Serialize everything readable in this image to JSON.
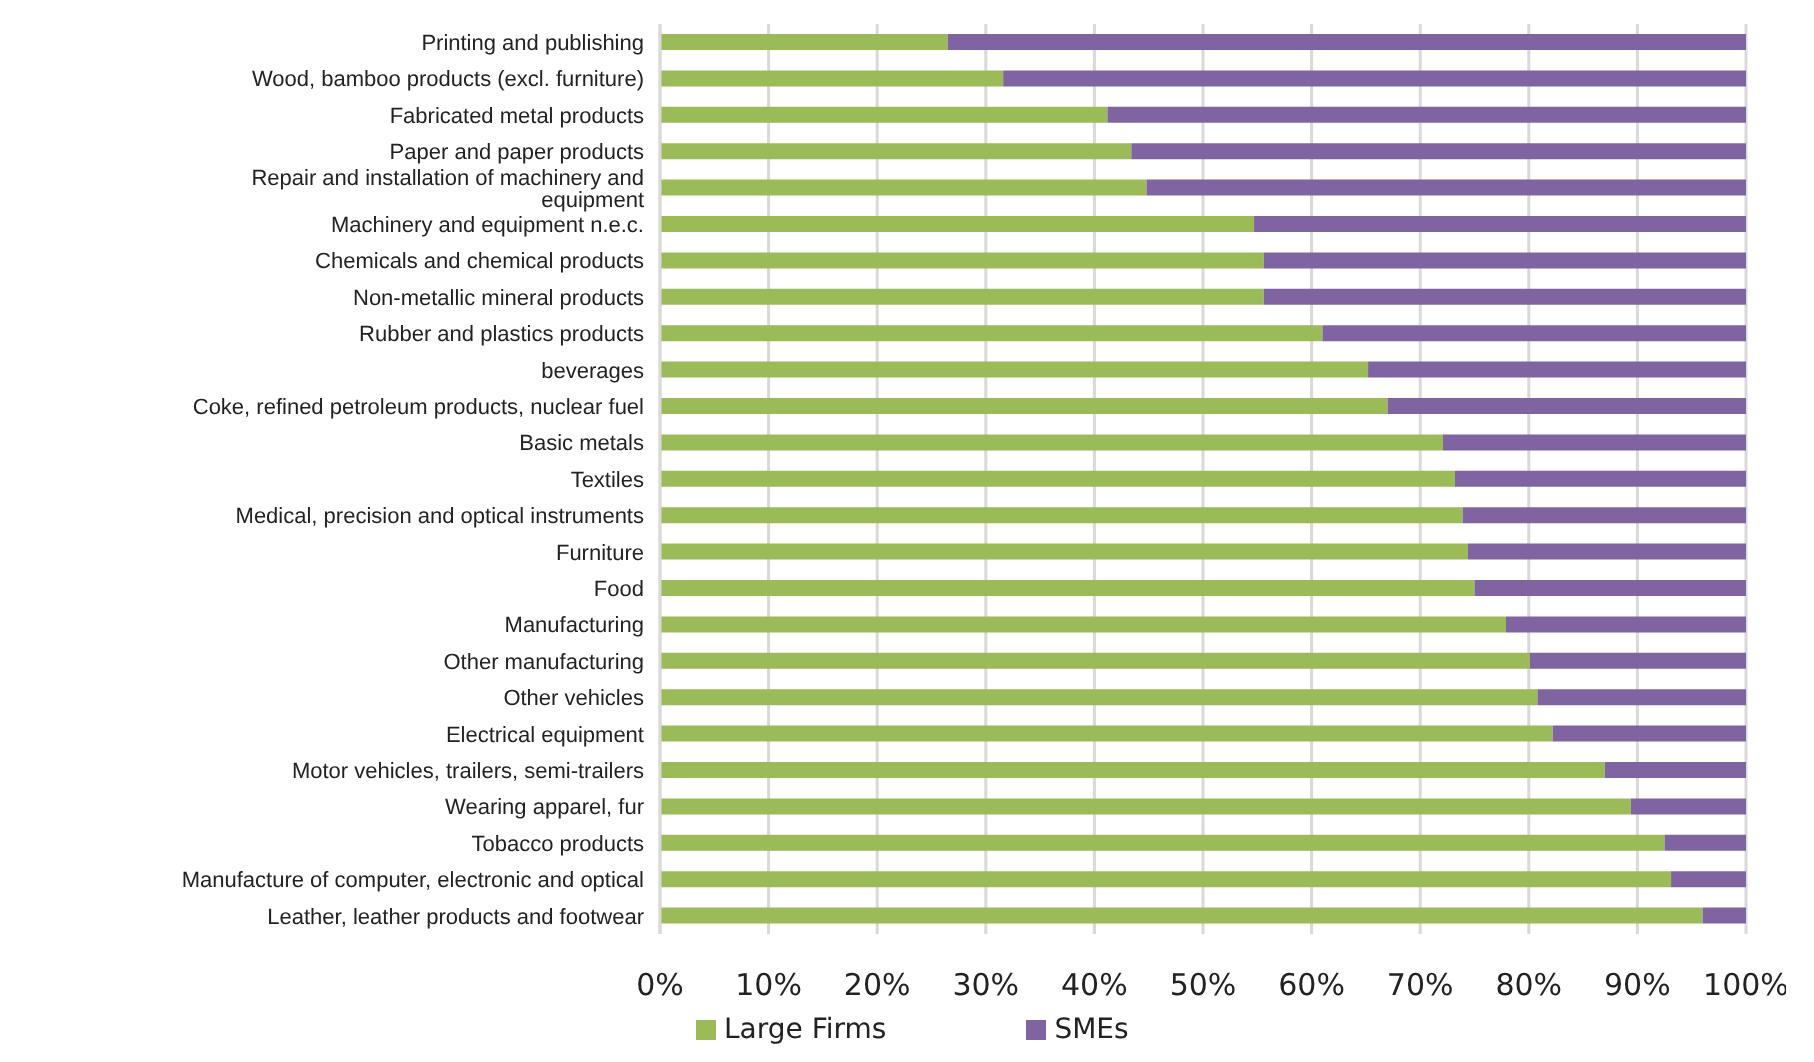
{
  "chart_data": {
    "type": "bar",
    "orientation": "horizontal",
    "stacked": true,
    "categories": [
      "Printing and publishing",
      "Wood, bamboo products (excl. furniture)",
      "Fabricated metal products",
      "Paper and paper products",
      "Repair and installation of machinery and equipment",
      "Machinery and equipment n.e.c.",
      "Chemicals and chemical products",
      "Non-metallic mineral products",
      "Rubber and plastics products",
      "beverages",
      "Coke, refined petroleum products, nuclear fuel",
      "Basic metals",
      "Textiles",
      "Medical, precision and optical instruments",
      "Furniture",
      "Food",
      "Manufacturing",
      "Other manufacturing",
      "Other vehicles",
      "Electrical equipment",
      "Motor vehicles, trailers, semi-trailers",
      "Wearing apparel, fur",
      "Tobacco products",
      "Manufacture of computer, electronic and optical",
      "Leather, leather products and footwear"
    ],
    "series": [
      {
        "name": "Large Firms",
        "color": "#9bbb59",
        "values": [
          26.5,
          31.6,
          41.2,
          43.4,
          44.8,
          54.7,
          55.6,
          55.6,
          61.0,
          65.2,
          67.0,
          72.1,
          73.2,
          73.9,
          74.4,
          75.0,
          77.9,
          80.1,
          80.8,
          82.2,
          87.0,
          89.4,
          92.5,
          93.1,
          96.0
        ]
      },
      {
        "name": "SMEs",
        "color": "#8064a2",
        "values": [
          73.5,
          68.4,
          58.8,
          56.6,
          55.2,
          45.3,
          44.4,
          44.4,
          39.0,
          34.8,
          33.0,
          27.9,
          26.8,
          26.1,
          25.6,
          25.0,
          22.1,
          19.9,
          19.2,
          17.8,
          13.0,
          10.6,
          7.5,
          6.9,
          4.0
        ]
      }
    ],
    "xlim": [
      0,
      100
    ],
    "xticks": [
      {
        "value": 0,
        "label": "0%"
      },
      {
        "value": 10,
        "label": "10%"
      },
      {
        "value": 20,
        "label": "20%"
      },
      {
        "value": 30,
        "label": "30%"
      },
      {
        "value": 40,
        "label": "40%"
      },
      {
        "value": 50,
        "label": "50%"
      },
      {
        "value": 60,
        "label": "60%"
      },
      {
        "value": 70,
        "label": "70%"
      },
      {
        "value": 80,
        "label": "80%"
      },
      {
        "value": 90,
        "label": "90%"
      },
      {
        "value": 100,
        "label": "100%"
      }
    ],
    "grid": "x",
    "legend": "bottom"
  }
}
